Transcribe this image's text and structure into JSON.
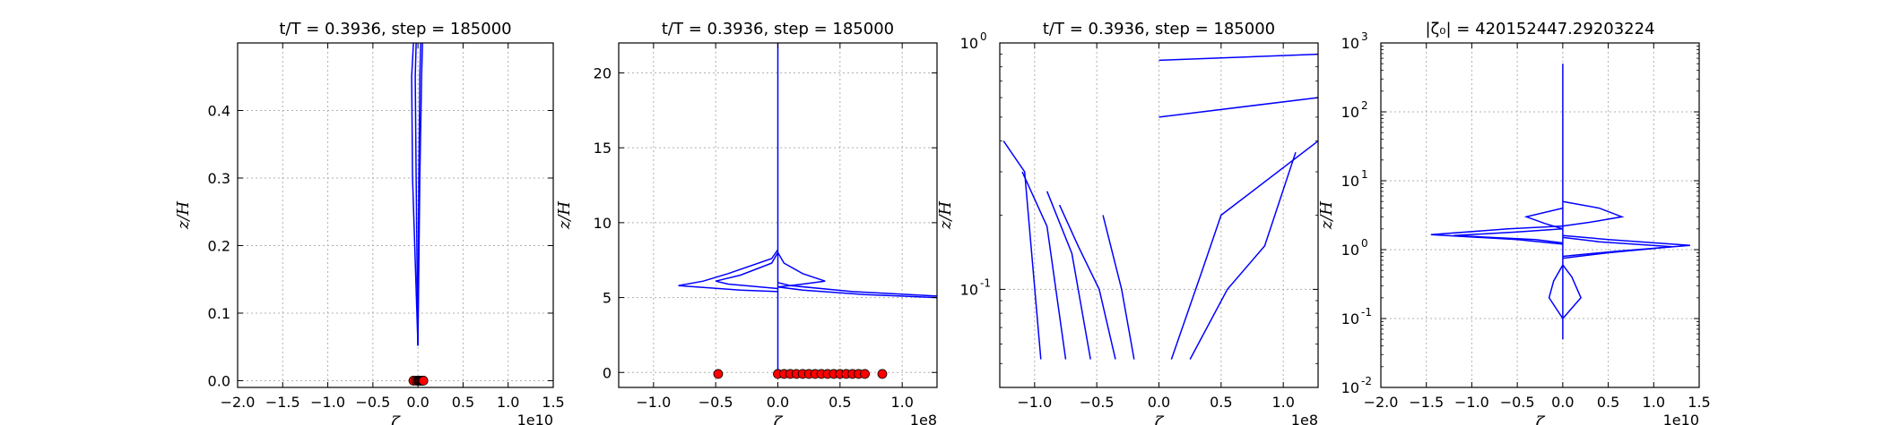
{
  "chart_data": [
    {
      "type": "line",
      "title": "t/T = 0.3936, step = 185000",
      "xlabel": "ζ",
      "ylabel": "z/H",
      "x_offset_label": "1e10",
      "xlim": [
        -2.0,
        1.5
      ],
      "ylim": [
        -0.01,
        0.5
      ],
      "xticks": [
        "−2.0",
        "−1.5",
        "−1.0",
        "−0.5",
        "0.0",
        "0.5",
        "1.0",
        "1.5"
      ],
      "yticks": [
        "0.0",
        "0.1",
        "0.2",
        "0.3",
        "0.4"
      ],
      "grid": true,
      "series": [
        {
          "color": "#0000ff",
          "profiles": [
            {
              "x": [
                0.0,
                -0.06,
                -0.07,
                -0.05
              ],
              "y": [
                0.052,
                0.3,
                0.45,
                0.5
              ]
            },
            {
              "x": [
                0.0,
                -0.02,
                -0.03,
                -0.02
              ],
              "y": [
                0.052,
                0.3,
                0.45,
                0.5
              ]
            },
            {
              "x": [
                0.0,
                0.02,
                0.04,
                0.05
              ],
              "y": [
                0.052,
                0.3,
                0.45,
                0.5
              ]
            },
            {
              "x": [
                0.0,
                0.01,
                0.02,
                0.03
              ],
              "y": [
                0.052,
                0.3,
                0.45,
                0.5
              ]
            }
          ]
        }
      ],
      "markers": {
        "color": "#ff0000",
        "x": [
          -0.05,
          -0.02,
          0.0,
          0.01,
          0.02,
          0.03,
          0.04,
          0.05,
          0.06
        ],
        "y": [
          0.0,
          0.0,
          0.0,
          0.0,
          0.0,
          0.0,
          0.0,
          0.0,
          0.0
        ]
      }
    },
    {
      "type": "line",
      "title": "t/T = 0.3936, step = 185000",
      "xlabel": "ζ",
      "ylabel": "z/H",
      "x_offset_label": "1e8",
      "xlim": [
        -1.28,
        1.28
      ],
      "ylim": [
        -1.0,
        22.0
      ],
      "xticks": [
        "−1.0",
        "−0.5",
        "0.0",
        "0.5",
        "1.0"
      ],
      "yticks": [
        "0",
        "5",
        "10",
        "15",
        "20"
      ],
      "grid": true,
      "series": [
        {
          "color": "#0000ff",
          "profiles": [
            {
              "x": [
                0.0,
                0.0
              ],
              "y": [
                0.0,
                22.0
              ]
            },
            {
              "x": [
                0.0,
                -0.05,
                -0.4,
                -0.6,
                -0.8,
                -0.3,
                0.0
              ],
              "y": [
                8.2,
                7.6,
                6.6,
                6.1,
                5.8,
                5.5,
                5.4
              ]
            },
            {
              "x": [
                0.0,
                -0.05,
                -0.3,
                -0.5,
                -0.4,
                0.0
              ],
              "y": [
                8.0,
                7.3,
                6.5,
                6.1,
                5.9,
                5.6
              ]
            },
            {
              "x": [
                0.0,
                0.05,
                0.2,
                0.38,
                0.2,
                0.0
              ],
              "y": [
                8.0,
                7.3,
                6.6,
                6.1,
                5.9,
                5.7
              ]
            },
            {
              "x": [
                0.0,
                0.1,
                0.6,
                1.28
              ],
              "y": [
                6.0,
                5.8,
                5.4,
                5.1
              ]
            },
            {
              "x": [
                0.0,
                0.2,
                0.7,
                1.28
              ],
              "y": [
                5.7,
                5.5,
                5.2,
                5.0
              ]
            }
          ]
        }
      ],
      "markers": {
        "color": "#ff0000",
        "x": [
          -0.48,
          0.0,
          0.05,
          0.1,
          0.15,
          0.2,
          0.25,
          0.3,
          0.35,
          0.4,
          0.45,
          0.5,
          0.55,
          0.6,
          0.65,
          0.7,
          0.84
        ],
        "y": [
          -0.1,
          -0.1,
          -0.1,
          -0.1,
          -0.1,
          -0.1,
          -0.1,
          -0.1,
          -0.1,
          -0.1,
          -0.1,
          -0.1,
          -0.1,
          -0.1,
          -0.1,
          -0.1,
          -0.1
        ]
      }
    },
    {
      "type": "line",
      "title": "t/T = 0.3936, step = 185000",
      "xlabel": "ζ",
      "ylabel": "z/H",
      "x_offset_label": "1e8",
      "yscale": "log",
      "xlim": [
        -1.28,
        1.28
      ],
      "ylim": [
        0.04,
        1.0
      ],
      "xticks": [
        "−1.0",
        "−0.5",
        "0.0",
        "0.5",
        "1.0"
      ],
      "yticks": [
        "10",
        "10"
      ],
      "ytick_exponents": [
        "-1",
        "0"
      ],
      "grid": true,
      "series": [
        {
          "color": "#0000ff",
          "profiles": [
            {
              "x": [
                -0.95,
                -1.08,
                -1.25
              ],
              "y": [
                0.052,
                0.3,
                0.4
              ]
            },
            {
              "x": [
                -0.75,
                -0.9,
                -1.1
              ],
              "y": [
                0.052,
                0.18,
                0.3
              ]
            },
            {
              "x": [
                -0.55,
                -0.7,
                -0.9
              ],
              "y": [
                0.052,
                0.14,
                0.25
              ]
            },
            {
              "x": [
                -0.35,
                -0.48,
                -0.65,
                -0.8
              ],
              "y": [
                0.052,
                0.1,
                0.15,
                0.22
              ]
            },
            {
              "x": [
                -0.2,
                -0.3,
                -0.45
              ],
              "y": [
                0.052,
                0.1,
                0.2
              ]
            },
            {
              "x": [
                0.1,
                0.35,
                0.5,
                1.28
              ],
              "y": [
                0.052,
                0.12,
                0.2,
                0.4
              ]
            },
            {
              "x": [
                0.25,
                0.55,
                0.85,
                1.1
              ],
              "y": [
                0.052,
                0.1,
                0.15,
                0.36
              ]
            },
            {
              "x": [
                0.0,
                1.28
              ],
              "y": [
                0.5,
                0.6
              ]
            },
            {
              "x": [
                0.0,
                1.28
              ],
              "y": [
                0.85,
                0.9
              ]
            }
          ]
        }
      ],
      "markers": {
        "color": "#ff0000",
        "x": [],
        "y": []
      }
    },
    {
      "type": "line",
      "title": "|ζ₀| = 420152447.29203224",
      "xlabel": "ζ",
      "ylabel": "z/H",
      "x_offset_label": "1e10",
      "yscale": "log",
      "xlim": [
        -2.0,
        1.5
      ],
      "ylim": [
        0.01,
        1000
      ],
      "xticks": [
        "−2.0",
        "−1.5",
        "−1.0",
        "−0.5",
        "0.0",
        "0.5",
        "1.0",
        "1.5"
      ],
      "yticks": [
        "10",
        "10",
        "10",
        "10",
        "10",
        "10"
      ],
      "ytick_exponents": [
        "-2",
        "-1",
        "0",
        "1",
        "2",
        "3"
      ],
      "grid": true,
      "series": [
        {
          "color": "#0000ff",
          "profiles": [
            {
              "x": [
                0.0,
                0.0
              ],
              "y": [
                0.05,
                500
              ]
            },
            {
              "x": [
                0.0,
                -0.6,
                -1.45,
                -0.5,
                0.0
              ],
              "y": [
                2.2,
                2.0,
                1.65,
                1.4,
                1.2
              ]
            },
            {
              "x": [
                0.0,
                -0.5,
                -1.2,
                -0.3,
                0.0
              ],
              "y": [
                2.0,
                1.8,
                1.6,
                1.4,
                1.25
              ]
            },
            {
              "x": [
                0.0,
                0.5,
                1.4,
                0.6,
                0.0
              ],
              "y": [
                1.6,
                1.4,
                1.15,
                0.95,
                0.8
              ]
            },
            {
              "x": [
                0.0,
                0.4,
                1.2,
                0.5,
                0.0
              ],
              "y": [
                1.5,
                1.3,
                1.1,
                0.9,
                0.75
              ]
            },
            {
              "x": [
                0.0,
                0.4,
                0.65,
                0.3,
                0.0
              ],
              "y": [
                5.0,
                4.0,
                3.0,
                2.5,
                2.2
              ]
            },
            {
              "x": [
                0.0,
                -0.4,
                -0.2,
                0.0
              ],
              "y": [
                4.0,
                3.0,
                2.4,
                2.0
              ]
            },
            {
              "x": [
                0.0,
                0.1,
                0.2,
                0.0
              ],
              "y": [
                0.6,
                0.4,
                0.2,
                0.1
              ]
            },
            {
              "x": [
                0.0,
                -0.1,
                -0.15,
                0.0
              ],
              "y": [
                0.6,
                0.35,
                0.2,
                0.1
              ]
            }
          ]
        }
      ],
      "markers": {
        "color": "#ff0000",
        "x": [],
        "y": []
      }
    }
  ]
}
